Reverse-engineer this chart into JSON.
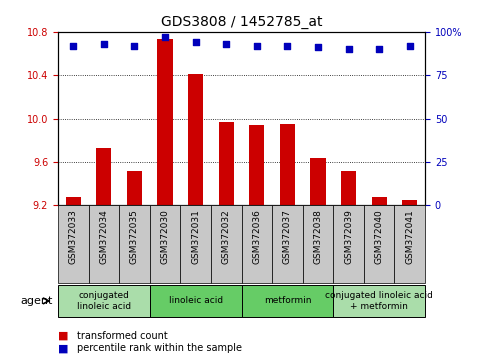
{
  "title": "GDS3808 / 1452785_at",
  "categories": [
    "GSM372033",
    "GSM372034",
    "GSM372035",
    "GSM372030",
    "GSM372031",
    "GSM372032",
    "GSM372036",
    "GSM372037",
    "GSM372038",
    "GSM372039",
    "GSM372040",
    "GSM372041"
  ],
  "bar_values": [
    9.28,
    9.73,
    9.52,
    10.73,
    10.41,
    9.97,
    9.94,
    9.95,
    9.64,
    9.52,
    9.28,
    9.25
  ],
  "scatter_values": [
    92,
    93,
    92,
    97,
    94,
    93,
    92,
    92,
    91,
    90,
    90,
    92
  ],
  "ylim": [
    9.2,
    10.8
  ],
  "y2lim": [
    0,
    100
  ],
  "yticks": [
    9.2,
    9.6,
    10.0,
    10.4,
    10.8
  ],
  "y2ticks": [
    0,
    25,
    50,
    75,
    100
  ],
  "y2tick_labels": [
    "0",
    "25",
    "50",
    "75",
    "100%"
  ],
  "bar_color": "#cc0000",
  "scatter_color": "#0000bb",
  "plot_bg": "#ffffff",
  "xtick_bg": "#c8c8c8",
  "agent_groups": [
    {
      "label": "conjugated\nlinoleic acid",
      "start": 0,
      "end": 2,
      "color": "#aaddaa"
    },
    {
      "label": "linoleic acid",
      "start": 3,
      "end": 5,
      "color": "#66cc66"
    },
    {
      "label": "metformin",
      "start": 6,
      "end": 8,
      "color": "#66cc66"
    },
    {
      "label": "conjugated linoleic acid\n+ metformin",
      "start": 9,
      "end": 11,
      "color": "#aaddaa"
    }
  ],
  "legend_items": [
    {
      "label": "transformed count",
      "color": "#cc0000"
    },
    {
      "label": "percentile rank within the sample",
      "color": "#0000bb"
    }
  ],
  "title_fontsize": 10,
  "tick_fontsize": 7,
  "xtick_fontsize": 6.5,
  "agent_fontsize": 6.5,
  "legend_fontsize": 7
}
